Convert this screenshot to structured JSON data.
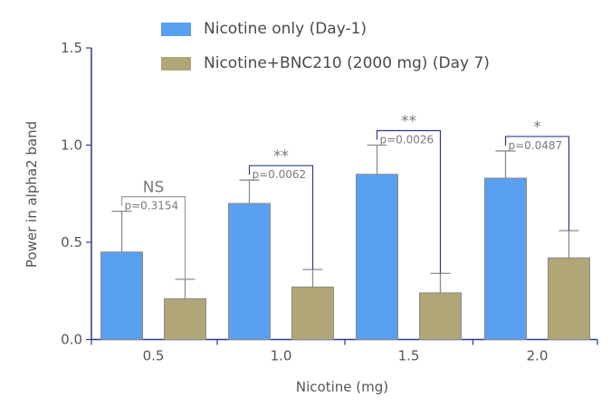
{
  "chart_data": {
    "type": "bar",
    "title": "",
    "xlabel": "Nicotine (mg)",
    "ylabel": "Power in alpha2 band",
    "ylim": [
      0,
      1.5
    ],
    "yticks": [
      "0.0",
      "0.5",
      "1.0",
      "1.5"
    ],
    "categories": [
      "0.5",
      "1.0",
      "1.5",
      "2.0"
    ],
    "legend_position": "top-center",
    "series": [
      {
        "name": "Nicotine only (Day-1)",
        "color": "#5aa0f0",
        "values": [
          0.45,
          0.7,
          0.85,
          0.83
        ],
        "errors": [
          0.21,
          0.12,
          0.15,
          0.14
        ]
      },
      {
        "name": "Nicotine+BNC210 (2000 mg) (Day 7)",
        "color": "#b0a678",
        "values": [
          0.21,
          0.27,
          0.24,
          0.42
        ],
        "errors": [
          0.1,
          0.09,
          0.1,
          0.14
        ]
      }
    ],
    "annotations": [
      {
        "category": "0.5",
        "significance": "NS",
        "p_value": "p=0.3154"
      },
      {
        "category": "1.0",
        "significance": "**",
        "p_value": "p=0.0062"
      },
      {
        "category": "1.5",
        "significance": "**",
        "p_value": "p=0.0026"
      },
      {
        "category": "2.0",
        "significance": "*",
        "p_value": "p=0.0487"
      }
    ]
  }
}
